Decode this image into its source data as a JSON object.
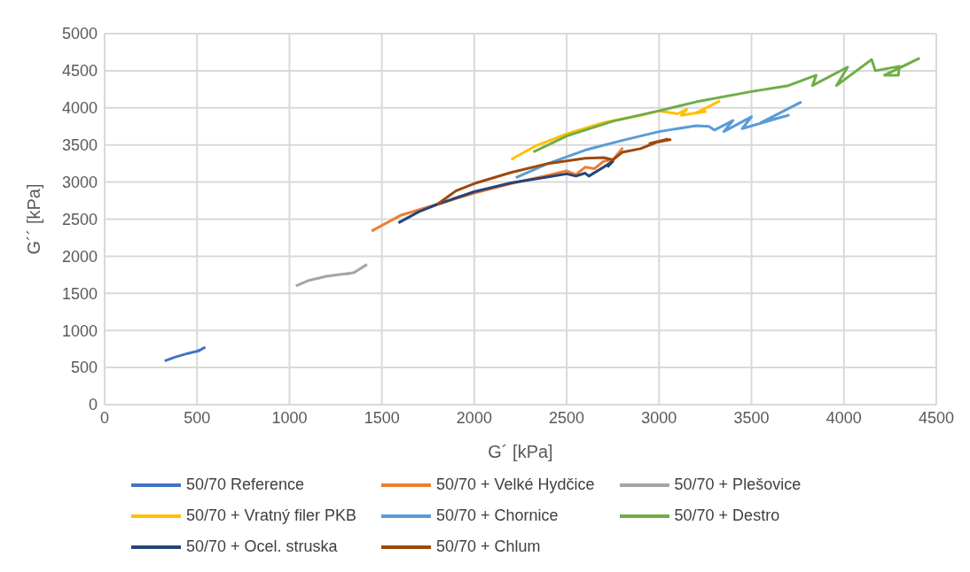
{
  "chart_data": {
    "type": "line",
    "xlabel": "G´  [kPa]",
    "ylabel": "G´´ [kPa]",
    "xlim": [
      0,
      4500
    ],
    "xticks": [
      0,
      500,
      1000,
      1500,
      2000,
      2500,
      3000,
      3500,
      4000,
      4500
    ],
    "ylim": [
      0,
      5000
    ],
    "yticks": [
      0,
      500,
      1000,
      1500,
      2000,
      2500,
      3000,
      3500,
      4000,
      4500,
      5000
    ],
    "grid": true,
    "legend": "bottom",
    "marker": "none",
    "line_style": "solid",
    "series": [
      {
        "name": "50/70 Reference",
        "color": "#4472c4",
        "x": [
          325,
          380,
          450,
          500,
          520,
          505,
          545
        ],
        "values": [
          590,
          640,
          690,
          720,
          740,
          720,
          775
        ]
      },
      {
        "name": "50/70 + Velké Hydčice",
        "color": "#ed7d31",
        "x": [
          1445,
          1600,
          1800,
          2000,
          2200,
          2400,
          2500,
          2550,
          2600,
          2650,
          2700,
          2750,
          2800,
          2780
        ],
        "values": [
          2340,
          2550,
          2700,
          2850,
          2980,
          3090,
          3150,
          3100,
          3200,
          3180,
          3280,
          3300,
          3450,
          3380
        ]
      },
      {
        "name": "50/70 + Plešovice",
        "color": "#a5a5a5",
        "x": [
          1035,
          1100,
          1200,
          1320,
          1310,
          1350,
          1420
        ],
        "values": [
          1600,
          1670,
          1730,
          1770,
          1760,
          1780,
          1890
        ]
      },
      {
        "name": "50/70 + Vratný filer PKB",
        "color": "#ffc000",
        "x": [
          2200,
          2335,
          2500,
          2700,
          2900,
          3000,
          3100,
          3150,
          3120,
          3250,
          3200,
          3330
        ],
        "values": [
          3305,
          3490,
          3650,
          3800,
          3900,
          3960,
          3920,
          3980,
          3900,
          3950,
          3930,
          4095
        ]
      },
      {
        "name": "50/70 + Chornice",
        "color": "#5b9bd5",
        "x": [
          2225,
          2400,
          2600,
          2800,
          3000,
          3200,
          3270,
          3300,
          3400,
          3350,
          3500,
          3450,
          3700,
          3550,
          3770
        ],
        "values": [
          3060,
          3250,
          3430,
          3560,
          3680,
          3760,
          3750,
          3700,
          3830,
          3680,
          3880,
          3720,
          3900,
          3800,
          4080
        ]
      },
      {
        "name": "50/70 + Destro",
        "color": "#70ad47",
        "x": [
          2320,
          2500,
          2750,
          3000,
          3200,
          3500,
          3700,
          3850,
          3830,
          4020,
          3960,
          4150,
          4170,
          4300,
          4295,
          4220,
          4410
        ],
        "values": [
          3405,
          3620,
          3820,
          3960,
          4080,
          4220,
          4300,
          4440,
          4300,
          4550,
          4300,
          4650,
          4500,
          4560,
          4440,
          4440,
          4670
        ]
      },
      {
        "name": "50/70 + Ocel. struska",
        "color": "#264478",
        "x": [
          1590,
          1700,
          1800,
          2000,
          2200,
          2400,
          2500,
          2550,
          2600,
          2620,
          2700,
          2750,
          2720
        ],
        "values": [
          2450,
          2600,
          2700,
          2870,
          2990,
          3070,
          3110,
          3080,
          3120,
          3080,
          3200,
          3280,
          3200
        ]
      },
      {
        "name": "50/70 + Chlum",
        "color": "#9e480e",
        "x": [
          1800,
          1900,
          2000,
          2200,
          2400,
          2600,
          2700,
          2750,
          2800,
          2900,
          3000,
          3060,
          2950,
          3050
        ],
        "values": [
          2700,
          2880,
          2980,
          3130,
          3250,
          3320,
          3330,
          3300,
          3400,
          3450,
          3550,
          3570,
          3520,
          3580
        ]
      }
    ]
  }
}
